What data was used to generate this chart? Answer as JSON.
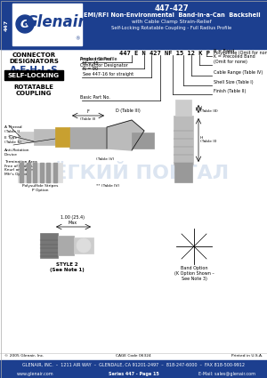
{
  "title_part": "447-427",
  "title_line1": "EMI/RFI Non-Environmental  Band-in-a-Can  Backshell",
  "title_line2": "with Cable Clamp Strain-Relief",
  "title_line3": "Self-Locking Rotatable Coupling - Full Radius Profile",
  "header_bg": "#1c3f8f",
  "logo_text": "Glenair",
  "series_label": "447",
  "connector_designators_label": "CONNECTOR\nDESIGNATORS",
  "designators": "A-F-H-L-S",
  "self_locking": "SELF-LOCKING",
  "rotatable": "ROTATABLE\nCOUPLING",
  "part_number_example": "447 E N 427 NF 15 12 K P",
  "footer_company": "GLENAIR, INC.  –  1211 AIR WAY  –  GLENDALE, CA 91201-2497  –  818-247-6000  –  FAX 818-500-9912",
  "footer_web": "www.glenair.com",
  "footer_series": "Series 447 - Page 15",
  "footer_email": "E-Mail: sales@glenair.com",
  "footer_copyright": "© 2005 Glenair, Inc.",
  "footer_cage": "CAGE Code 06324",
  "footer_printed": "Printed in U.S.A.",
  "bg_color": "#ffffff",
  "blue_dark": "#1c3f8f",
  "watermark_text": "ЛЁГКИЙ ПОРТАЛ",
  "watermark_color": "#c5d5e8"
}
